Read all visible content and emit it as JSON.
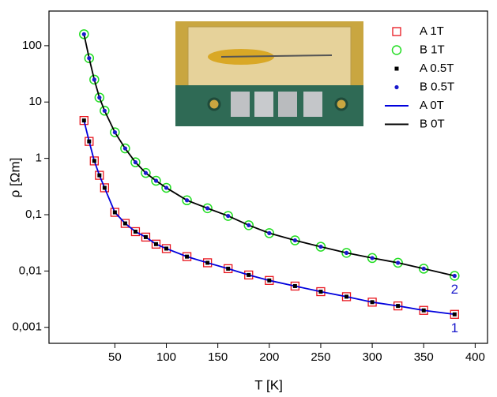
{
  "chart_data": {
    "type": "scatter",
    "x_label": "T [K]",
    "y_label": "ρ [Ωm]",
    "log_y": true,
    "legend": "upper right",
    "x": [
      20,
      25,
      30,
      35,
      40,
      50,
      60,
      70,
      80,
      90,
      100,
      120,
      140,
      160,
      180,
      200,
      225,
      250,
      275,
      300,
      325,
      350,
      380
    ],
    "series": [
      {
        "name": "A 1T",
        "color": "#e8141c",
        "marker": "square",
        "values": [
          4.7,
          2.0,
          0.9,
          0.5,
          0.3,
          0.11,
          0.07,
          0.05,
          0.04,
          0.03,
          0.025,
          0.018,
          0.014,
          0.011,
          0.0085,
          0.0068,
          0.0054,
          0.0043,
          0.0035,
          0.0028,
          0.0024,
          0.002,
          0.0017
        ]
      },
      {
        "name": "B 1T",
        "color": "#22dd22",
        "marker": "circle",
        "values": [
          160,
          60,
          25,
          12,
          7,
          2.9,
          1.5,
          0.85,
          0.55,
          0.4,
          0.3,
          0.18,
          0.13,
          0.095,
          0.065,
          0.047,
          0.035,
          0.027,
          0.021,
          0.017,
          0.014,
          0.011,
          0.0082
        ]
      },
      {
        "name": "A 0.5T",
        "color": "#000000",
        "marker": "small-square",
        "values": [
          4.7,
          2.0,
          0.9,
          0.5,
          0.3,
          0.11,
          0.07,
          0.05,
          0.04,
          0.03,
          0.025,
          0.018,
          0.014,
          0.011,
          0.0085,
          0.0068,
          0.0054,
          0.0043,
          0.0035,
          0.0028,
          0.0024,
          0.002,
          0.0017
        ]
      },
      {
        "name": "B 0.5T",
        "color": "#1a1acc",
        "marker": "dot",
        "values": [
          160,
          60,
          25,
          12,
          7,
          2.9,
          1.5,
          0.85,
          0.55,
          0.4,
          0.3,
          0.18,
          0.13,
          0.095,
          0.065,
          0.047,
          0.035,
          0.027,
          0.021,
          0.017,
          0.014,
          0.011,
          0.0082
        ]
      },
      {
        "name": "A 0T",
        "color": "#0000dd",
        "marker": "line",
        "values": [
          4.7,
          2.0,
          0.9,
          0.5,
          0.3,
          0.11,
          0.07,
          0.05,
          0.04,
          0.03,
          0.025,
          0.018,
          0.014,
          0.011,
          0.0085,
          0.0068,
          0.0054,
          0.0043,
          0.0035,
          0.0028,
          0.0024,
          0.002,
          0.0017
        ]
      },
      {
        "name": "B 0T",
        "color": "#000000",
        "marker": "line",
        "values": [
          160,
          60,
          25,
          12,
          7,
          2.9,
          1.5,
          0.85,
          0.55,
          0.4,
          0.3,
          0.18,
          0.13,
          0.095,
          0.065,
          0.047,
          0.035,
          0.027,
          0.021,
          0.017,
          0.014,
          0.011,
          0.0082
        ]
      }
    ],
    "annotations": [
      "1",
      "2"
    ],
    "annotation_color": "#1a1acc",
    "xlim": [
      -14,
      412
    ],
    "xticks": [
      50,
      100,
      150,
      200,
      250,
      300,
      350,
      400
    ],
    "ylim": [
      0.00052,
      412
    ],
    "yticks": [
      {
        "value": 0.001,
        "label": "0,001"
      },
      {
        "value": 0.01,
        "label": "0,01"
      },
      {
        "value": 0.1,
        "label": "0,1"
      },
      1,
      10,
      100
    ]
  }
}
